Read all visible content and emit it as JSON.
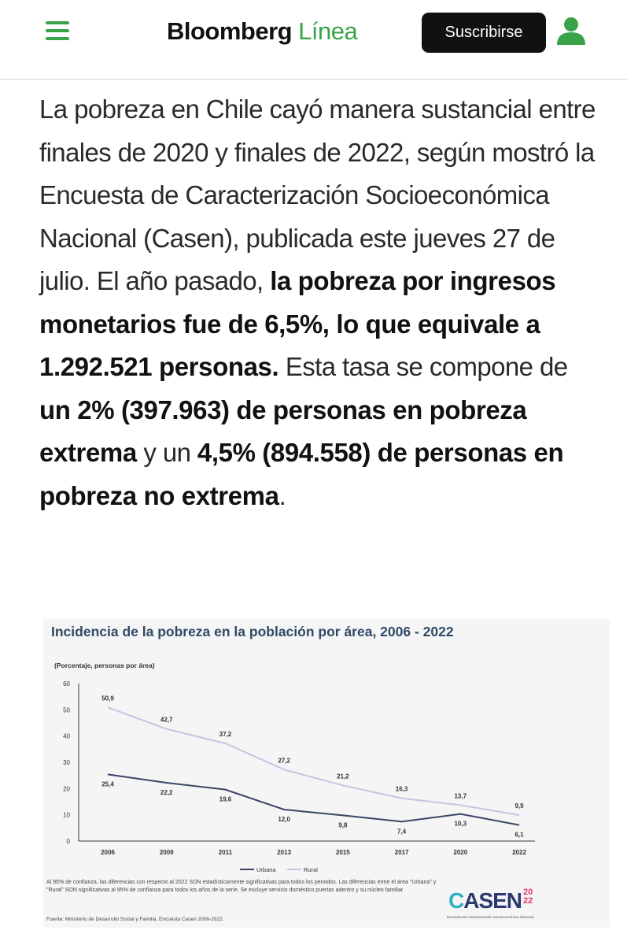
{
  "header": {
    "menu_icon": "hamburger-menu-icon",
    "logo_main": "Bloomberg",
    "logo_accent": "Línea",
    "subscribe_label": "Suscribirse",
    "user_icon": "user-icon",
    "accent_color": "#3aa34a"
  },
  "article": {
    "t1": "La pobreza en Chile cayó manera sustancial entre finales de 2020 y finales de 2022, según mostró la Encuesta de Caracterización Socioeconómica Nacional (Casen), publicada este jueves 27 de julio. El año pasado, ",
    "b1": "la pobreza por ingresos monetarios fue de 6,5%, lo que equivale a 1.292.521 personas.",
    "t2": " Esta tasa se compone de ",
    "b2": "un 2% (397.963) de personas en pobreza extrema",
    "t3": " y un ",
    "b3": "4,5% (894.558) de personas en pobreza no extrema",
    "t4": "."
  },
  "figure": {
    "notes": "Al 95% de confianza, las diferencias con respecto al 2022 SON estadísticamente significativas para todos los periodos. Las diferencias entre el área \"Urbana\" y \"Rural\" SON significativas al 95% de confianza para todos los años de la serie. Se excluye servicio doméstico puertas adentro y su núcleo familiar.",
    "source": "Fuente: Ministerio de Desarrollo Social y Familia, Encuesta Casen 2006-2022.",
    "logo_text": "CASEN",
    "logo_year": "2022",
    "logo_sub": "Encuesta de Caracterización Socioeconómica Nacional"
  },
  "chart_data": {
    "type": "line",
    "title": "Incidencia de la pobreza en la población por área, 2006 - 2022",
    "subtitle": "(Porcentaje, personas por área)",
    "categories": [
      "2006",
      "2009",
      "2011",
      "2013",
      "2015",
      "2017",
      "2020",
      "2022"
    ],
    "series": [
      {
        "name": "Urbana",
        "values": [
          25.4,
          22.2,
          19.6,
          12.0,
          9.8,
          7.4,
          10.3,
          6.1
        ],
        "labels": [
          "25,4",
          "22,2",
          "19,6",
          "12,0",
          "9,8",
          "7,4",
          "10,3",
          "6,1"
        ],
        "color": "#3b4566"
      },
      {
        "name": "Rural",
        "values": [
          50.9,
          42.7,
          37.2,
          27.2,
          21.2,
          16.3,
          13.7,
          9.9
        ],
        "labels": [
          "50,9",
          "42,7",
          "37,2",
          "27,2",
          "21,2",
          "16,3",
          "13,7",
          "9,9"
        ],
        "color": "#c3c6e2"
      }
    ],
    "yticks": [
      "0",
      "10",
      "20",
      "30",
      "40",
      "50",
      "60"
    ],
    "ylim": [
      0,
      60
    ],
    "legend": "bottom-right",
    "grid": false
  }
}
